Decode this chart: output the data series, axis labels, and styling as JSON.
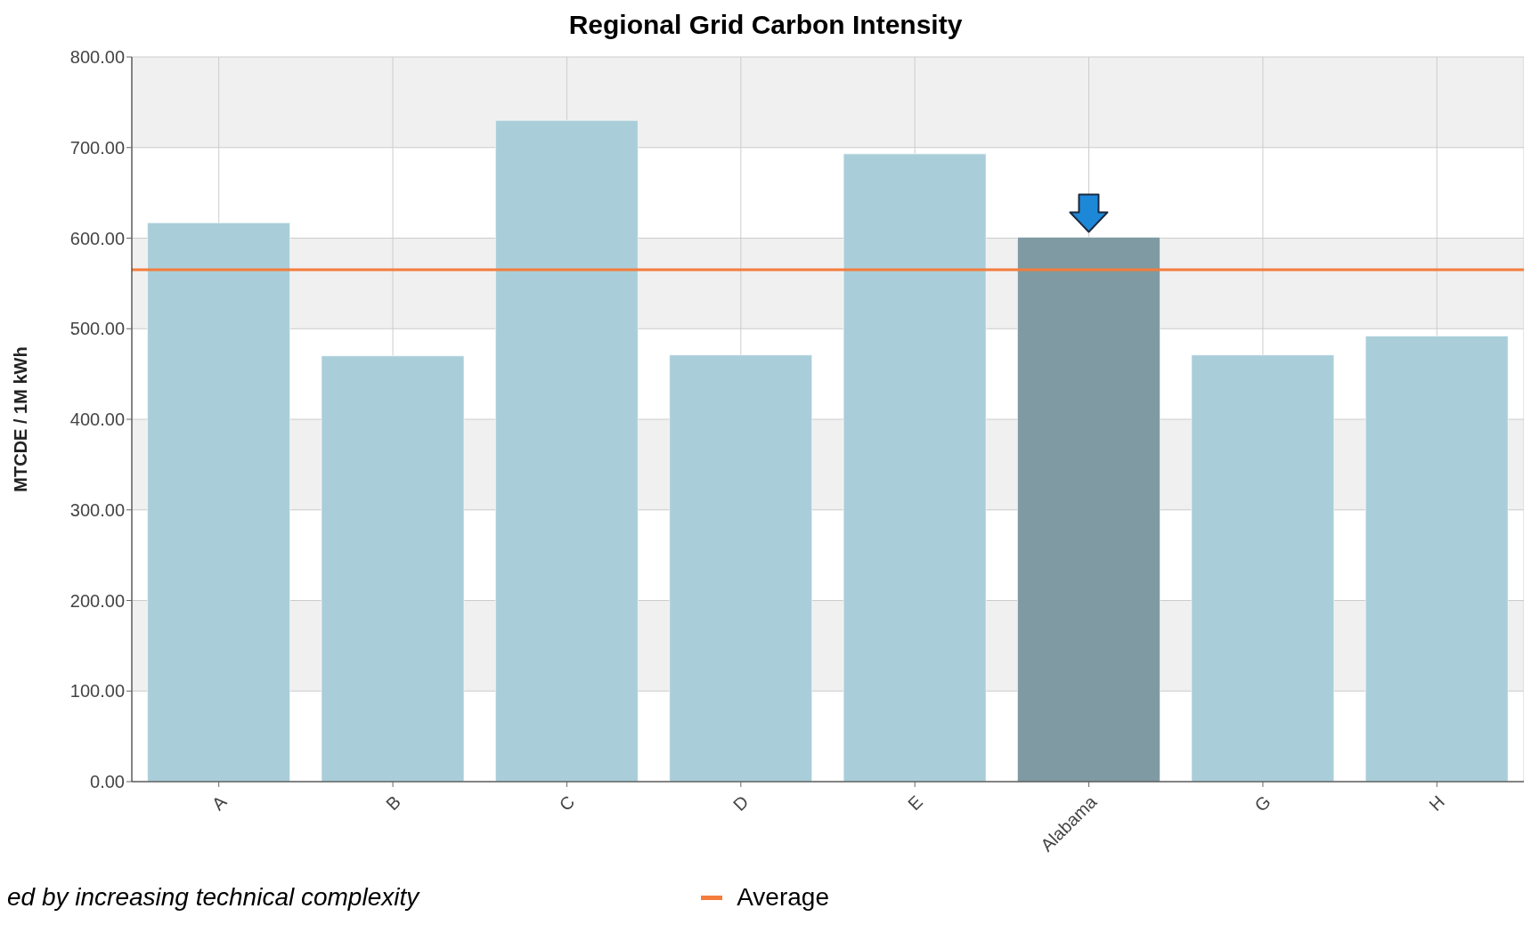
{
  "chart_data": {
    "type": "bar",
    "title": "Regional Grid Carbon Intensity",
    "ylabel": "MTCDE / 1M kWh",
    "categories": [
      "A",
      "B",
      "C",
      "D",
      "E",
      "Alabama",
      "G",
      "H"
    ],
    "values": [
      617,
      470,
      730,
      471,
      693,
      601,
      471,
      492
    ],
    "colors": [
      "#a9ced9",
      "#a9ced9",
      "#a9ced9",
      "#a9ced9",
      "#a9ced9",
      "#7f9aa2",
      "#a9ced9",
      "#a9ced9"
    ],
    "ylim": [
      0,
      800
    ],
    "yticks": [
      {
        "value": 0,
        "label": "0.00"
      },
      {
        "value": 100,
        "label": "100.00"
      },
      {
        "value": 200,
        "label": "200.00"
      },
      {
        "value": 300,
        "label": "300.00"
      },
      {
        "value": 400,
        "label": "400.00"
      },
      {
        "value": 500,
        "label": "500.00"
      },
      {
        "value": 600,
        "label": "600.00"
      },
      {
        "value": 700,
        "label": "700.00"
      },
      {
        "value": 800,
        "label": "800.00"
      }
    ],
    "ref_lines": [
      {
        "axis": "y",
        "value": 565,
        "label": "Average",
        "color": "#f47c3c"
      }
    ],
    "annotations": [
      "ed by increasing technical complexity"
    ],
    "grid": true,
    "legend": "bottom"
  }
}
